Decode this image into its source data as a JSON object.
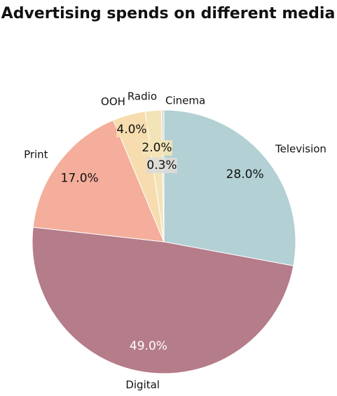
{
  "chart_data": {
    "type": "pie",
    "title": "Advertising spends on different media",
    "categories": [
      "Television",
      "Digital",
      "Print",
      "OOH",
      "Radio",
      "Cinema"
    ],
    "values": [
      28,
      49,
      17,
      4,
      2,
      0.3
    ],
    "value_labels": [
      "28.0%",
      "49.0%",
      "17.0%",
      "4.0%",
      "2.0%",
      "0.3%"
    ],
    "colors": [
      "#b3d0d4",
      "#b57c8a",
      "#f4ae9b",
      "#f6dcae",
      "#f3e4b8",
      "#dcdcd8"
    ]
  }
}
